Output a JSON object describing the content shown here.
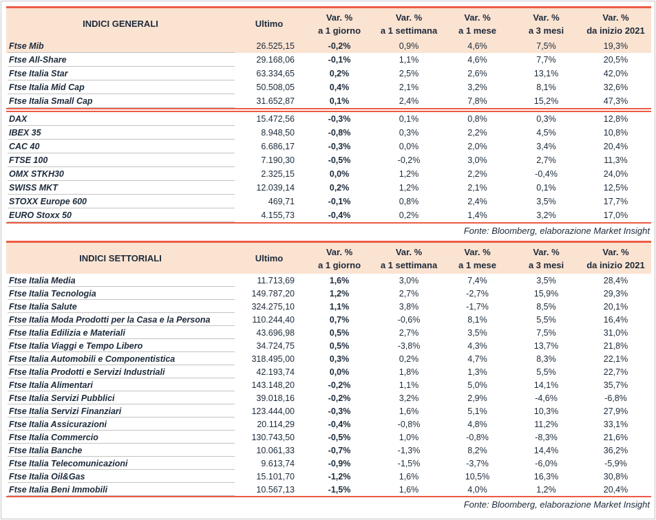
{
  "colors": {
    "accent_red": "#ec5b43",
    "header_peach": "#fbe3d2",
    "text_navy": "#1c2a3a",
    "row_line_gray": "#c3c3c3"
  },
  "tables": [
    {
      "title": "INDICI GENERALI",
      "columns": {
        "ultimo": "Ultimo",
        "var_1d": [
          "Var. %",
          "a 1 giorno"
        ],
        "var_1w": [
          "Var. %",
          "a 1 settimana"
        ],
        "var_1m": [
          "Var. %",
          "a 1 mese"
        ],
        "var_3m": [
          "Var. %",
          "a 3 mesi"
        ],
        "var_ytd": [
          "Var. %",
          "da inizio 2021"
        ]
      },
      "source_note": "Fonte: Bloomberg, elaborazione Market Insight",
      "sections": [
        {
          "rows": [
            {
              "name": "Ftse Mib",
              "ultimo": "26.525,15",
              "var_1d": "-0,2%",
              "var_1w": "0,9%",
              "var_1m": "4,6%",
              "var_3m": "7,5%",
              "var_ytd": "19,3%",
              "highlighted": true
            },
            {
              "name": "Ftse All-Share",
              "ultimo": "29.168,06",
              "var_1d": "-0,1%",
              "var_1w": "1,1%",
              "var_1m": "4,6%",
              "var_3m": "7,7%",
              "var_ytd": "20,5%"
            },
            {
              "name": "Ftse Italia Star",
              "ultimo": "63.334,65",
              "var_1d": "0,2%",
              "var_1w": "2,5%",
              "var_1m": "2,6%",
              "var_3m": "13,1%",
              "var_ytd": "42,0%"
            },
            {
              "name": "Ftse Italia Mid Cap",
              "ultimo": "50.508,05",
              "var_1d": "0,4%",
              "var_1w": "2,1%",
              "var_1m": "3,2%",
              "var_3m": "8,1%",
              "var_ytd": "32,6%"
            },
            {
              "name": "Ftse Italia Small Cap",
              "ultimo": "31.652,87",
              "var_1d": "0,1%",
              "var_1w": "2,4%",
              "var_1m": "7,8%",
              "var_3m": "15,2%",
              "var_ytd": "47,3%"
            }
          ]
        },
        {
          "rows": [
            {
              "name": "DAX",
              "ultimo": "15.472,56",
              "var_1d": "-0,3%",
              "var_1w": "0,1%",
              "var_1m": "0,8%",
              "var_3m": "0,3%",
              "var_ytd": "12,8%"
            },
            {
              "name": "IBEX 35",
              "ultimo": "8.948,50",
              "var_1d": "-0,8%",
              "var_1w": "0,3%",
              "var_1m": "2,2%",
              "var_3m": "4,5%",
              "var_ytd": "10,8%"
            },
            {
              "name": "CAC 40",
              "ultimo": "6.686,17",
              "var_1d": "-0,3%",
              "var_1w": "0,0%",
              "var_1m": "2,0%",
              "var_3m": "3,4%",
              "var_ytd": "20,4%"
            },
            {
              "name": "FTSE 100",
              "ultimo": "7.190,30",
              "var_1d": "-0,5%",
              "var_1w": "-0,2%",
              "var_1m": "3,0%",
              "var_3m": "2,7%",
              "var_ytd": "11,3%"
            },
            {
              "name": "OMX STKH30",
              "ultimo": "2.325,15",
              "var_1d": "0,0%",
              "var_1w": "1,2%",
              "var_1m": "2,2%",
              "var_3m": "-0,4%",
              "var_ytd": "24,0%"
            },
            {
              "name": "SWISS MKT",
              "ultimo": "12.039,14",
              "var_1d": "0,2%",
              "var_1w": "1,2%",
              "var_1m": "2,1%",
              "var_3m": "0,1%",
              "var_ytd": "12,5%"
            },
            {
              "name": "STOXX Europe 600",
              "ultimo": "469,71",
              "var_1d": "-0,1%",
              "var_1w": "0,8%",
              "var_1m": "2,4%",
              "var_3m": "3,5%",
              "var_ytd": "17,7%"
            },
            {
              "name": "EURO Stoxx 50",
              "ultimo": "4.155,73",
              "var_1d": "-0,4%",
              "var_1w": "0,2%",
              "var_1m": "1,4%",
              "var_3m": "3,2%",
              "var_ytd": "17,0%"
            }
          ]
        }
      ]
    },
    {
      "title": "INDICI SETTORIALI",
      "columns": {
        "ultimo": "Ultimo",
        "var_1d": [
          "Var. %",
          "a 1 giorno"
        ],
        "var_1w": [
          "Var. %",
          "a 1 settimana"
        ],
        "var_1m": [
          "Var. %",
          "a 1 mese"
        ],
        "var_3m": [
          "Var. %",
          "a 3 mesi"
        ],
        "var_ytd": [
          "Var. %",
          "da inizio 2021"
        ]
      },
      "source_note": "Fonte: Bloomberg, elaborazione Market Insight",
      "sections": [
        {
          "rows": [
            {
              "name": "Ftse Italia Media",
              "ultimo": "11.713,69",
              "var_1d": "1,6%",
              "var_1w": "3,0%",
              "var_1m": "7,4%",
              "var_3m": "3,5%",
              "var_ytd": "28,4%"
            },
            {
              "name": "Ftse Italia Tecnologia",
              "ultimo": "149.787,20",
              "var_1d": "1,2%",
              "var_1w": "2,7%",
              "var_1m": "-2,7%",
              "var_3m": "15,9%",
              "var_ytd": "29,3%"
            },
            {
              "name": "Ftse Italia Salute",
              "ultimo": "324.275,10",
              "var_1d": "1,1%",
              "var_1w": "3,8%",
              "var_1m": "-1,7%",
              "var_3m": "8,5%",
              "var_ytd": "20,1%"
            },
            {
              "name": "Ftse Italia Moda Prodotti per la Casa e la Persona",
              "ultimo": "110.244,40",
              "var_1d": "0,7%",
              "var_1w": "-0,6%",
              "var_1m": "8,1%",
              "var_3m": "5,5%",
              "var_ytd": "16,4%"
            },
            {
              "name": "Ftse Italia Edilizia e Materiali",
              "ultimo": "43.696,98",
              "var_1d": "0,5%",
              "var_1w": "2,7%",
              "var_1m": "3,5%",
              "var_3m": "7,5%",
              "var_ytd": "31,0%"
            },
            {
              "name": "Ftse Italia Viaggi e Tempo Libero",
              "ultimo": "34.724,75",
              "var_1d": "0,5%",
              "var_1w": "-3,8%",
              "var_1m": "4,3%",
              "var_3m": "13,7%",
              "var_ytd": "21,8%"
            },
            {
              "name": "Ftse Italia Automobili e Componentistica",
              "ultimo": "318.495,00",
              "var_1d": "0,3%",
              "var_1w": "0,2%",
              "var_1m": "4,7%",
              "var_3m": "8,3%",
              "var_ytd": "22,1%"
            },
            {
              "name": "Ftse Italia Prodotti e Servizi Industriali",
              "ultimo": "42.193,74",
              "var_1d": "0,0%",
              "var_1w": "1,8%",
              "var_1m": "1,3%",
              "var_3m": "5,5%",
              "var_ytd": "22,7%"
            },
            {
              "name": "Ftse Italia Alimentari",
              "ultimo": "143.148,20",
              "var_1d": "-0,2%",
              "var_1w": "1,1%",
              "var_1m": "5,0%",
              "var_3m": "14,1%",
              "var_ytd": "35,7%"
            },
            {
              "name": "Ftse Italia Servizi Pubblici",
              "ultimo": "39.018,16",
              "var_1d": "-0,2%",
              "var_1w": "3,2%",
              "var_1m": "2,9%",
              "var_3m": "-4,6%",
              "var_ytd": "-6,8%"
            },
            {
              "name": "Ftse Italia Servizi Finanziari",
              "ultimo": "123.444,00",
              "var_1d": "-0,3%",
              "var_1w": "1,6%",
              "var_1m": "5,1%",
              "var_3m": "10,3%",
              "var_ytd": "27,9%"
            },
            {
              "name": "Ftse Italia Assicurazioni",
              "ultimo": "20.114,29",
              "var_1d": "-0,4%",
              "var_1w": "-0,8%",
              "var_1m": "4,8%",
              "var_3m": "11,2%",
              "var_ytd": "33,1%"
            },
            {
              "name": "Ftse Italia Commercio",
              "ultimo": "130.743,50",
              "var_1d": "-0,5%",
              "var_1w": "1,0%",
              "var_1m": "-0,8%",
              "var_3m": "-8,3%",
              "var_ytd": "21,6%"
            },
            {
              "name": "Ftse Italia Banche",
              "ultimo": "10.061,33",
              "var_1d": "-0,7%",
              "var_1w": "-1,3%",
              "var_1m": "8,2%",
              "var_3m": "14,4%",
              "var_ytd": "36,2%"
            },
            {
              "name": "Ftse Italia Telecomunicazioni",
              "ultimo": "9.613,74",
              "var_1d": "-0,9%",
              "var_1w": "-1,5%",
              "var_1m": "-3,7%",
              "var_3m": "-6,0%",
              "var_ytd": "-5,9%"
            },
            {
              "name": "Ftse Italia Oil&Gas",
              "ultimo": "15.101,70",
              "var_1d": "-1,2%",
              "var_1w": "1,6%",
              "var_1m": "10,5%",
              "var_3m": "16,3%",
              "var_ytd": "30,8%"
            },
            {
              "name": "Ftse Italia Beni Immobili",
              "ultimo": "10.567,13",
              "var_1d": "-1,5%",
              "var_1w": "1,6%",
              "var_1m": "4,0%",
              "var_3m": "1,2%",
              "var_ytd": "20,4%"
            }
          ]
        }
      ]
    }
  ]
}
